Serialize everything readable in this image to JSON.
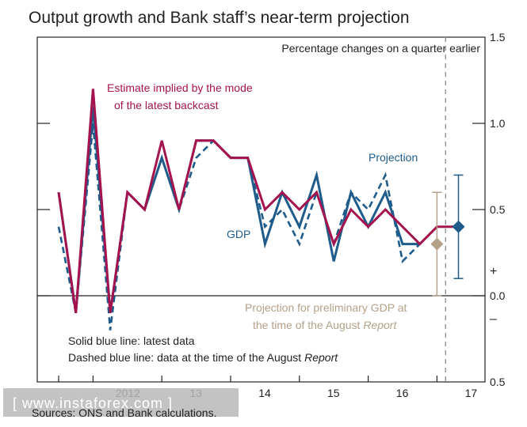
{
  "chart_data": {
    "type": "line",
    "title": "Output growth and Bank staff’s near-term projection",
    "subtitle": "Percentage changes on a quarter earlier",
    "ylim": [
      -0.5,
      1.5
    ],
    "yticks": [
      {
        "value": 1.5,
        "label": "1.5"
      },
      {
        "value": 1.0,
        "label": "1.0"
      },
      {
        "value": 0.5,
        "label": "0.5"
      },
      {
        "value": 0.0,
        "label": "0.0"
      },
      {
        "value": -0.5,
        "label": "0.5"
      }
    ],
    "sign_labels": {
      "plus": "+",
      "minus": "–"
    },
    "x_ticks": [
      {
        "q": 0,
        "label": ""
      },
      {
        "q": 2,
        "label": "2012"
      },
      {
        "q": 6,
        "label": "13"
      },
      {
        "q": 10,
        "label": "14"
      },
      {
        "q": 14,
        "label": "15"
      },
      {
        "q": 18,
        "label": "16"
      },
      {
        "q": 22,
        "label": "17"
      }
    ],
    "latest_data_quarter": 22.5,
    "series": [
      {
        "name": "Estimate implied by the mode of the latest backcast",
        "color": "#a5134f",
        "style": "solid",
        "points": [
          [
            0,
            0.6
          ],
          [
            1,
            -0.1
          ],
          [
            2,
            1.2
          ],
          [
            3,
            -0.1
          ],
          [
            4,
            0.6
          ],
          [
            5,
            0.5
          ],
          [
            6,
            0.9
          ],
          [
            7,
            0.5
          ],
          [
            8,
            0.9
          ],
          [
            9,
            0.9
          ],
          [
            10,
            0.8
          ],
          [
            11,
            0.8
          ],
          [
            12,
            0.5
          ],
          [
            13,
            0.6
          ],
          [
            14,
            0.5
          ],
          [
            15,
            0.6
          ],
          [
            16,
            0.3
          ],
          [
            17,
            0.5
          ],
          [
            18,
            0.4
          ],
          [
            19,
            0.5
          ],
          [
            20,
            0.4
          ],
          [
            21,
            0.3
          ],
          [
            22,
            0.4
          ],
          [
            23,
            0.4
          ]
        ]
      },
      {
        "name": "GDP",
        "color": "#1f5c8b",
        "style": "solid",
        "points": [
          [
            0,
            0.6
          ],
          [
            1,
            -0.1
          ],
          [
            2,
            1.1
          ],
          [
            3,
            -0.1
          ],
          [
            4,
            0.6
          ],
          [
            5,
            0.5
          ],
          [
            6,
            0.8
          ],
          [
            7,
            0.5
          ],
          [
            8,
            0.9
          ],
          [
            9,
            0.9
          ],
          [
            10,
            0.8
          ],
          [
            11,
            0.8
          ],
          [
            12,
            0.3
          ],
          [
            13,
            0.6
          ],
          [
            14,
            0.4
          ],
          [
            15,
            0.7
          ],
          [
            16,
            0.2
          ],
          [
            17,
            0.6
          ],
          [
            18,
            0.4
          ],
          [
            19,
            0.6
          ],
          [
            20,
            0.3
          ],
          [
            21,
            0.3
          ]
        ]
      },
      {
        "name": "Dashed blue line",
        "color": "#1f5c8b",
        "style": "dashed",
        "points": [
          [
            0,
            0.4
          ],
          [
            1,
            -0.1
          ],
          [
            2,
            1.0
          ],
          [
            3,
            -0.2
          ],
          [
            4,
            0.6
          ],
          [
            5,
            0.5
          ],
          [
            6,
            0.8
          ],
          [
            7,
            0.5
          ],
          [
            8,
            0.8
          ],
          [
            9,
            0.9
          ],
          [
            10,
            0.8
          ],
          [
            11,
            0.8
          ],
          [
            12,
            0.4
          ],
          [
            13,
            0.5
          ],
          [
            14,
            0.3
          ],
          [
            15,
            0.6
          ],
          [
            16,
            0.3
          ],
          [
            17,
            0.6
          ],
          [
            18,
            0.5
          ],
          [
            19,
            0.7
          ],
          [
            20,
            0.2
          ],
          [
            21,
            0.3
          ]
        ]
      }
    ],
    "projections": [
      {
        "name": "Projection",
        "quarter": 23.25,
        "value": 0.4,
        "low": 0.1,
        "high": 0.7,
        "color": "#1f5c8b"
      },
      {
        "name": "Projection for preliminary GDP at the time of the August Report",
        "quarter": 22.0,
        "value": 0.3,
        "low": 0.0,
        "high": 0.6,
        "color": "#b5a08a"
      }
    ],
    "annotations": {
      "estimate_line1": "Estimate implied by the mode",
      "estimate_line2": "of the latest backcast",
      "projection": "Projection",
      "gdp": "GDP",
      "prelim_line1": "Projection for preliminary GDP at",
      "prelim_line2_prefix": "the time of the August ",
      "prelim_line2_italic": "Report",
      "solid_note": "Solid blue line:  latest data",
      "dashed_note_prefix": "Dashed blue line:  data at the time of the August ",
      "dashed_note_italic": "Report"
    },
    "sources": "Sources:  ONS and Bank calculations.",
    "watermark": "[ www.instaforex.com ]",
    "colors": {
      "estimate": "#a5134f",
      "gdp": "#1f5c8b",
      "prelim": "#b5a08a",
      "vline": "#999999",
      "frame": "#222222"
    }
  }
}
